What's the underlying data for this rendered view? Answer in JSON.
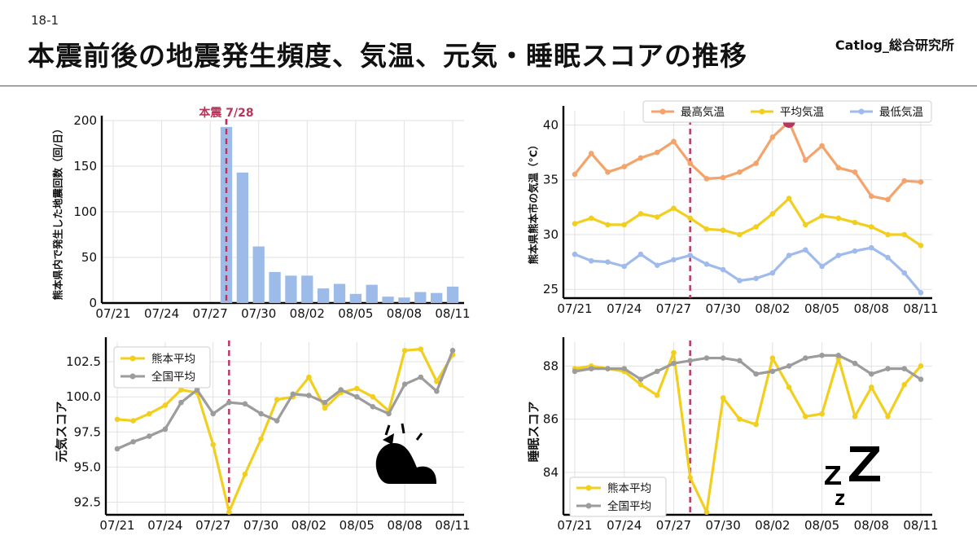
{
  "header": {
    "slide_number": "18-1",
    "title": "本震前後の地震発生頻度、気温、元気・睡眠スコアの推移",
    "brand": "Catlog_総合研究所"
  },
  "colors": {
    "bar": "#9dbbe8",
    "quake_line": "#b8345a",
    "max_temp": "#f4a36a",
    "avg_temp": "#f2cf1f",
    "min_temp": "#9fbbee",
    "kumamoto": "#f2cf1f",
    "national": "#9c9c9c",
    "peak_dot": "#b8345a"
  },
  "icons": {
    "cat": "cat-silhouette-icon",
    "sleep": "zzz-sleep-icon"
  },
  "chart_data": [
    {
      "id": "quakes",
      "type": "bar",
      "ylabel": "熊本県内で発生した地震回数（回/日）",
      "annotation": "本震 7/28",
      "xticks": [
        "07/21",
        "07/24",
        "07/27",
        "07/30",
        "08/02",
        "08/05",
        "08/08",
        "08/11"
      ],
      "ylim": [
        0,
        200
      ],
      "yticks": [
        0,
        50,
        100,
        150,
        200
      ],
      "grid": true,
      "x": [
        "07/21",
        "07/22",
        "07/23",
        "07/24",
        "07/25",
        "07/26",
        "07/27",
        "07/28",
        "07/29",
        "07/30",
        "07/31",
        "08/01",
        "08/02",
        "08/03",
        "08/04",
        "08/05",
        "08/06",
        "08/07",
        "08/08",
        "08/09",
        "08/10",
        "08/11"
      ],
      "values": [
        0,
        0,
        0,
        0,
        0,
        0,
        0,
        193,
        143,
        62,
        34,
        30,
        30,
        16,
        21,
        10,
        20,
        7,
        6,
        12,
        11,
        18
      ]
    },
    {
      "id": "temperature",
      "type": "line",
      "ylabel": "熊本県熊本市の気温（°C）",
      "xticks": [
        "07/21",
        "07/24",
        "07/27",
        "07/30",
        "08/02",
        "08/05",
        "08/08",
        "08/11"
      ],
      "ylim": [
        24.2,
        41.3
      ],
      "yticks": [
        25,
        30,
        35,
        40
      ],
      "grid": true,
      "legend_position": "top",
      "annotation_marker": "08/03",
      "x": [
        "07/21",
        "07/22",
        "07/23",
        "07/24",
        "07/25",
        "07/26",
        "07/27",
        "07/28",
        "07/29",
        "07/30",
        "07/31",
        "08/01",
        "08/02",
        "08/03",
        "08/04",
        "08/05",
        "08/06",
        "08/07",
        "08/08",
        "08/09",
        "08/10",
        "08/11"
      ],
      "series": [
        {
          "name": "最高気温",
          "values": [
            35.5,
            37.4,
            35.7,
            36.2,
            37.0,
            37.5,
            38.5,
            36.5,
            35.1,
            35.2,
            35.7,
            36.5,
            38.9,
            40.3,
            36.8,
            38.1,
            36.1,
            35.7,
            33.5,
            33.2,
            34.9,
            34.8
          ]
        },
        {
          "name": "平均気温",
          "values": [
            31.0,
            31.5,
            30.9,
            30.9,
            31.9,
            31.6,
            32.4,
            31.5,
            30.5,
            30.4,
            30.0,
            30.7,
            31.9,
            33.3,
            30.9,
            31.7,
            31.5,
            31.1,
            30.7,
            30.0,
            30.0,
            29.0
          ]
        },
        {
          "name": "最低気温",
          "values": [
            28.2,
            27.6,
            27.5,
            27.1,
            28.2,
            27.2,
            27.7,
            28.1,
            27.3,
            26.8,
            25.8,
            26.0,
            26.5,
            28.1,
            28.6,
            27.1,
            28.1,
            28.5,
            28.8,
            27.9,
            26.5,
            24.7
          ]
        }
      ]
    },
    {
      "id": "genki",
      "type": "line",
      "ylabel": "元気スコア",
      "xticks": [
        "07/21",
        "07/24",
        "07/27",
        "07/30",
        "08/02",
        "08/05",
        "08/08",
        "08/11"
      ],
      "ylim": [
        91.6,
        103.9
      ],
      "yticks": [
        92.5,
        95.0,
        97.5,
        100.0,
        102.5
      ],
      "grid": true,
      "legend_position": "top-left",
      "x": [
        "07/21",
        "07/22",
        "07/23",
        "07/24",
        "07/25",
        "07/26",
        "07/27",
        "07/28",
        "07/29",
        "07/30",
        "07/31",
        "08/01",
        "08/02",
        "08/03",
        "08/04",
        "08/05",
        "08/06",
        "08/07",
        "08/08",
        "08/09",
        "08/10",
        "08/11"
      ],
      "series": [
        {
          "name": "熊本平均",
          "values": [
            98.4,
            98.3,
            98.8,
            99.4,
            100.5,
            100.3,
            96.6,
            91.8,
            94.5,
            97.0,
            99.8,
            100.0,
            101.4,
            99.2,
            100.3,
            100.6,
            100.0,
            99.0,
            103.3,
            103.4,
            101.1,
            103.0
          ]
        },
        {
          "name": "全国平均",
          "values": [
            96.3,
            96.8,
            97.2,
            97.7,
            99.6,
            100.5,
            98.8,
            99.6,
            99.5,
            98.8,
            98.3,
            100.2,
            100.1,
            99.6,
            100.5,
            100.0,
            99.3,
            98.8,
            100.9,
            101.4,
            100.4,
            103.3
          ]
        }
      ]
    },
    {
      "id": "sleep",
      "type": "line",
      "ylabel": "睡眠スコア",
      "xticks": [
        "07/21",
        "07/24",
        "07/27",
        "07/30",
        "08/02",
        "08/05",
        "08/08",
        "08/11"
      ],
      "ylim": [
        82.4,
        88.9
      ],
      "yticks": [
        84,
        86,
        88
      ],
      "grid": true,
      "legend_position": "bottom-left",
      "x": [
        "07/21",
        "07/22",
        "07/23",
        "07/24",
        "07/25",
        "07/26",
        "07/27",
        "07/28",
        "07/29",
        "07/30",
        "07/31",
        "08/01",
        "08/02",
        "08/03",
        "08/04",
        "08/05",
        "08/06",
        "08/07",
        "08/08",
        "08/09",
        "08/10",
        "08/11"
      ],
      "series": [
        {
          "name": "熊本平均",
          "values": [
            87.9,
            88.0,
            87.9,
            87.8,
            87.3,
            86.9,
            88.5,
            83.8,
            82.5,
            86.8,
            86.0,
            85.8,
            88.3,
            87.2,
            86.1,
            86.2,
            88.3,
            86.1,
            87.2,
            86.1,
            87.3,
            88.0
          ]
        },
        {
          "name": "全国平均",
          "values": [
            87.8,
            87.9,
            87.9,
            87.9,
            87.5,
            87.8,
            88.1,
            88.2,
            88.3,
            88.3,
            88.2,
            87.7,
            87.8,
            88.0,
            88.3,
            88.4,
            88.4,
            88.1,
            87.7,
            87.9,
            87.9,
            87.5
          ]
        }
      ]
    }
  ]
}
